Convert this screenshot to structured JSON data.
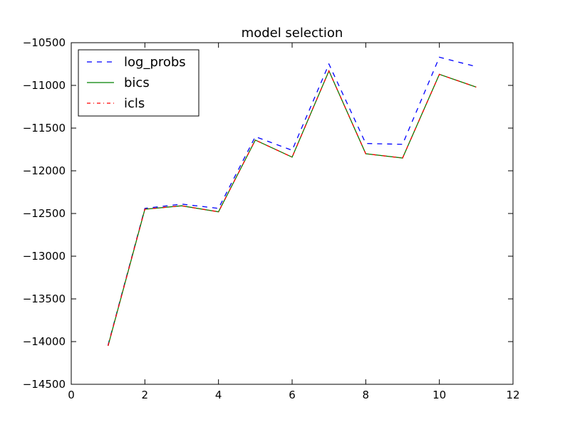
{
  "chart_data": {
    "type": "line",
    "title": "model selection",
    "xlabel": "",
    "ylabel": "",
    "xlim": [
      0,
      12
    ],
    "ylim": [
      -14500,
      -10500
    ],
    "xticks": [
      0,
      2,
      4,
      6,
      8,
      10,
      12
    ],
    "yticks": [
      -10500,
      -11000,
      -11500,
      -12000,
      -12500,
      -13000,
      -13500,
      -14000,
      -14500
    ],
    "grid": false,
    "legend_position": "top-left",
    "x": [
      1,
      2,
      3,
      4,
      5,
      6,
      7,
      8,
      9,
      10,
      11
    ],
    "series": [
      {
        "name": "log_probs",
        "color": "#0000ff",
        "style": "dashed",
        "values": [
          -14040,
          -12440,
          -12390,
          -12440,
          -11600,
          -11760,
          -10750,
          -11680,
          -11690,
          -10670,
          -10780
        ]
      },
      {
        "name": "bics",
        "color": "#008000",
        "style": "solid",
        "values": [
          -14050,
          -12450,
          -12410,
          -12480,
          -11640,
          -11840,
          -10830,
          -11800,
          -11850,
          -10870,
          -11020
        ]
      },
      {
        "name": "icls",
        "color": "#ff0000",
        "style": "dashdot",
        "values": [
          -14050,
          -12450,
          -12410,
          -12480,
          -11640,
          -11840,
          -10830,
          -11800,
          -11850,
          -10870,
          -11020
        ]
      }
    ]
  }
}
